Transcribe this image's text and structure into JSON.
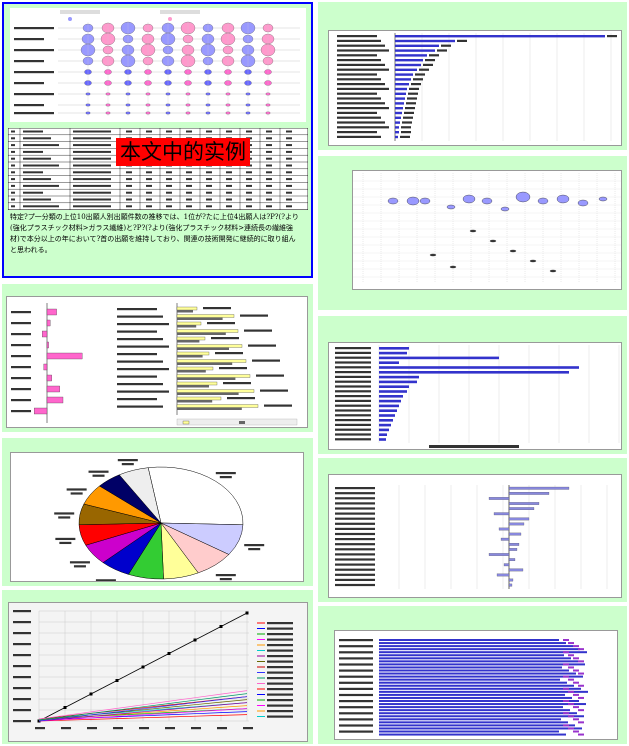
{
  "stamp_label": "本文中的实例",
  "body_text_lines": [
    "特定?プ一分類の上位10出願人別出願件数の推移では、1位が?たに上位4出願人は?P?(?より",
    "(強化プラスチック材料>ガラス繊維)と?P?(?より(強化プラスチック材料>連続長の繊維強",
    "材)で本分以上の年において?首の出願を維持しており、関連の技術開発に継続的に取り組ん",
    "と思われる。"
  ],
  "colors": {
    "page_bg": "#ccffcc",
    "highlight_border": "#0000ff",
    "stamp_bg": "#ff0000",
    "bar_blue": "#3333cc",
    "bar_magenta": "#ff66cc",
    "bar_yellow": "#ffff99",
    "bubble_purple": "#9999ff",
    "bubble_pink": "#ff99cc"
  }
}
